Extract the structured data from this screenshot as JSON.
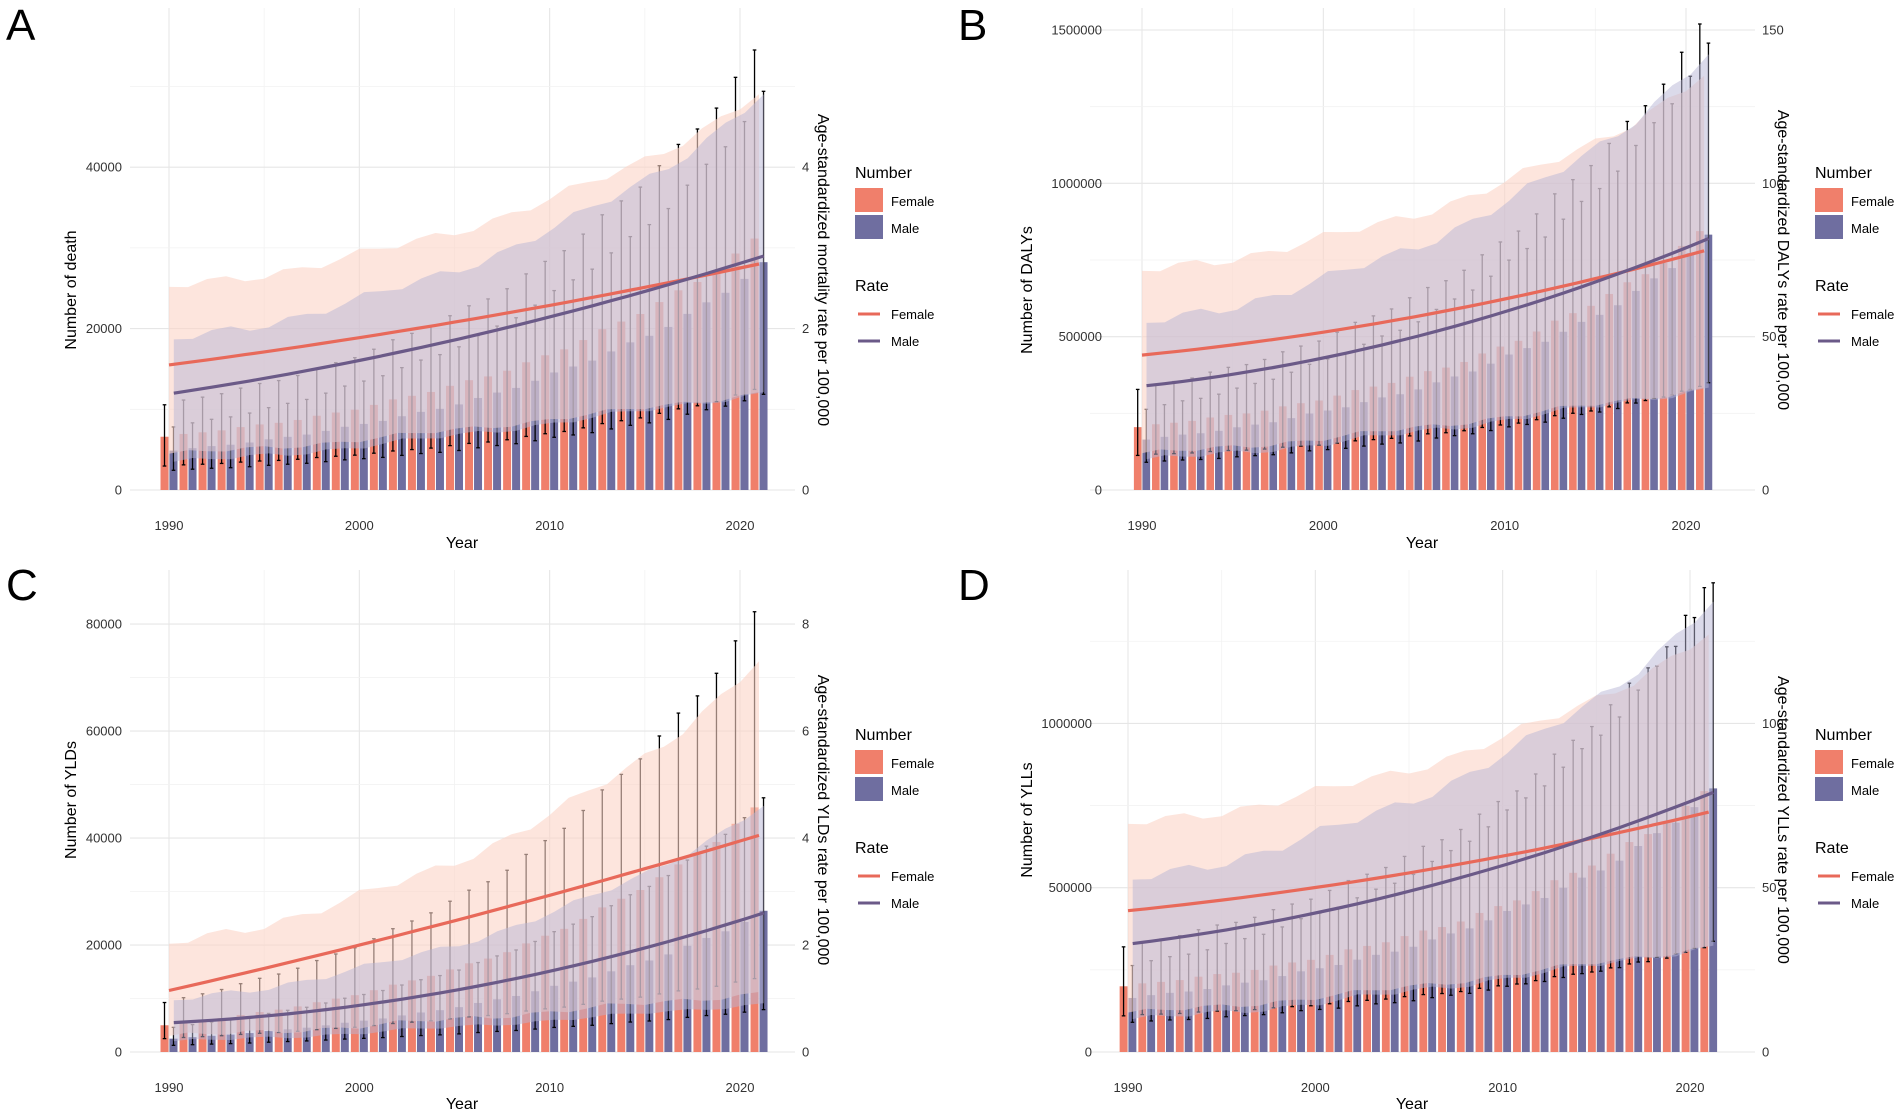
{
  "colors": {
    "female_bar": "#F07F6B",
    "male_bar": "#6F6EA0",
    "female_line": "#E8695A",
    "male_line": "#6B5A88",
    "female_band": "#FBD3C6",
    "male_band": "#B8B5D6",
    "error_bar": "#000000"
  },
  "legend": {
    "number_title": "Number",
    "rate_title": "Rate",
    "female": "Female",
    "male": "Male"
  },
  "chart_data": [
    {
      "panel": "A",
      "type": "bar+line",
      "xlabel": "Year",
      "ylabel_left": "Number of death",
      "ylabel_right": "Age-standardized mortality rate per 100,000",
      "x_ticks": [
        1990,
        2000,
        2010,
        2020
      ],
      "left_ticks": [
        0,
        20000,
        40000
      ],
      "right_ticks": [
        0,
        2,
        4
      ],
      "left_range": [
        0,
        57000
      ],
      "right_range": [
        0,
        5.7
      ],
      "years": [
        1990,
        2021
      ],
      "number_female": {
        "start": 6600,
        "mid": 14000,
        "end": 31000
      },
      "number_female_err": {
        "lo_frac_start": 0.45,
        "lo_frac_end": 0.4,
        "hi_frac_start": 1.6,
        "hi_frac_end": 1.75
      },
      "number_male": {
        "start": 4900,
        "mid": 11500,
        "end": 27800
      },
      "number_male_err": {
        "lo_frac_start": 0.5,
        "lo_frac_end": 0.42,
        "hi_frac_start": 1.6,
        "hi_frac_end": 1.75
      },
      "rate_female": {
        "start": 1.55,
        "mid": 2.1,
        "end": 2.8
      },
      "rate_female_band": {
        "lo_start": 0.45,
        "lo_end": 1.2,
        "hi_start": 2.5,
        "hi_end": 4.9
      },
      "rate_male": {
        "start": 1.2,
        "mid": 1.9,
        "end": 2.9
      },
      "rate_male_band": {
        "lo_start": 0.35,
        "lo_end": 1.2,
        "hi_start": 1.85,
        "hi_end": 4.9
      }
    },
    {
      "panel": "B",
      "type": "bar+line",
      "xlabel": "Year",
      "ylabel_left": "Number of DALYs",
      "ylabel_right": "Age-standardized DALYs rate per 100,000",
      "x_ticks": [
        1990,
        2000,
        2010,
        2020
      ],
      "left_ticks": [
        0,
        500000,
        1000000,
        1500000
      ],
      "right_ticks": [
        0,
        50,
        100,
        150
      ],
      "left_range": [
        0,
        1500000
      ],
      "right_range": [
        0,
        150
      ],
      "years": [
        1990,
        2021
      ],
      "number_female": {
        "start": 205000,
        "mid": 410000,
        "end": 840000
      },
      "number_female_err": {
        "lo_frac_start": 0.55,
        "lo_frac_end": 0.4,
        "hi_frac_start": 1.6,
        "hi_frac_end": 1.8
      },
      "number_male": {
        "start": 165000,
        "mid": 360000,
        "end": 820000
      },
      "number_male_err": {
        "lo_frac_start": 0.55,
        "lo_frac_end": 0.42,
        "hi_frac_start": 1.6,
        "hi_frac_end": 1.75
      },
      "rate_female": {
        "start": 44,
        "mid": 57,
        "end": 78
      },
      "rate_female_band": {
        "lo_start": 12,
        "lo_end": 33,
        "hi_start": 71,
        "hi_end": 135
      },
      "rate_male": {
        "start": 34,
        "mid": 51,
        "end": 82
      },
      "rate_male_band": {
        "lo_start": 10,
        "lo_end": 33,
        "hi_start": 54,
        "hi_end": 142
      }
    },
    {
      "panel": "C",
      "type": "bar+line",
      "xlabel": "Year",
      "ylabel_left": "Number of YLDs",
      "ylabel_right": "Age-standardized YLDs rate per 100,000",
      "x_ticks": [
        1990,
        2000,
        2010,
        2020
      ],
      "left_ticks": [
        0,
        20000,
        40000,
        60000,
        80000
      ],
      "right_ticks": [
        0,
        2,
        4,
        6,
        8
      ],
      "left_range": [
        0,
        86000
      ],
      "right_range": [
        0,
        8.6
      ],
      "years": [
        1990,
        2021
      ],
      "number_female": {
        "start": 5000,
        "mid": 16000,
        "end": 45500
      },
      "number_female_err": {
        "lo_frac_start": 0.5,
        "lo_frac_end": 0.3,
        "hi_frac_start": 1.85,
        "hi_frac_end": 1.8
      },
      "number_male": {
        "start": 2500,
        "mid": 8500,
        "end": 26000
      },
      "number_male_err": {
        "lo_frac_start": 0.5,
        "lo_frac_end": 0.3,
        "hi_frac_start": 1.85,
        "hi_frac_end": 1.8
      },
      "rate_female": {
        "start": 1.15,
        "mid": 2.5,
        "end": 4.05
      },
      "rate_female_band": {
        "lo_start": 0.3,
        "lo_end": 1.1,
        "hi_start": 2.0,
        "hi_end": 7.3
      },
      "rate_male": {
        "start": 0.55,
        "mid": 1.2,
        "end": 2.6
      },
      "rate_male_band": {
        "lo_start": 0.2,
        "lo_end": 0.9,
        "hi_start": 0.95,
        "hi_end": 4.6
      }
    },
    {
      "panel": "D",
      "type": "bar+line",
      "xlabel": "Year",
      "ylabel_left": "Number of YLLs",
      "ylabel_right": "Age-standardized YLLs rate per 100,000",
      "x_ticks": [
        1990,
        2000,
        2010,
        2020
      ],
      "left_ticks": [
        0,
        500000,
        1000000
      ],
      "right_ticks": [
        0,
        50,
        100
      ],
      "left_range": [
        0,
        1400000
      ],
      "right_range": [
        0,
        140
      ],
      "years": [
        1990,
        2021
      ],
      "number_female": {
        "start": 200000,
        "mid": 380000,
        "end": 790000
      },
      "number_female_err": {
        "lo_frac_start": 0.55,
        "lo_frac_end": 0.4,
        "hi_frac_start": 1.6,
        "hi_frac_end": 1.78
      },
      "number_male": {
        "start": 165000,
        "mid": 340000,
        "end": 790000
      },
      "number_male_err": {
        "lo_frac_start": 0.55,
        "lo_frac_end": 0.42,
        "hi_frac_start": 1.6,
        "hi_frac_end": 1.78
      },
      "rate_female": {
        "start": 43,
        "mid": 55,
        "end": 73
      },
      "rate_female_band": {
        "lo_start": 12,
        "lo_end": 32,
        "hi_start": 69,
        "hi_end": 127
      },
      "rate_male": {
        "start": 33,
        "mid": 50,
        "end": 79
      },
      "rate_male_band": {
        "lo_start": 10,
        "lo_end": 32,
        "hi_start": 52,
        "hi_end": 137
      }
    }
  ]
}
